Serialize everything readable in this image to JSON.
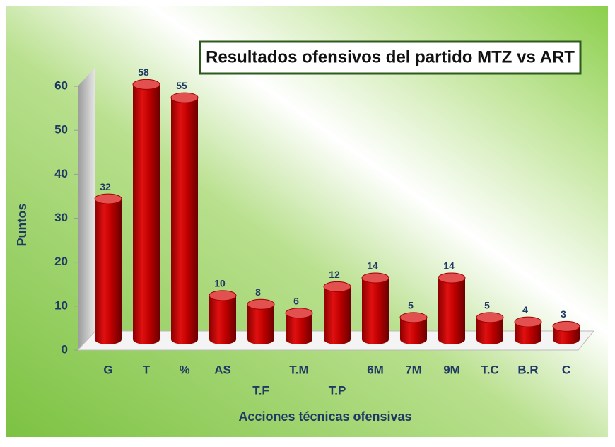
{
  "chart_data": {
    "type": "bar",
    "title": "Resultados ofensivos del partido MTZ vs ART",
    "x_label": "Acciones técnicas ofensivas",
    "y_label": "Puntos",
    "categories": [
      "G",
      "T",
      "%",
      "AS",
      "T.F",
      "T.M",
      "T.P",
      "6M",
      "7M",
      "9M",
      "T.C",
      "B.R",
      "C"
    ],
    "values": [
      32,
      58,
      55,
      10,
      8,
      6,
      12,
      14,
      5,
      14,
      5,
      4,
      3
    ],
    "color": "#c00000",
    "ylim": [
      0,
      60
    ],
    "yticks": [
      0,
      10,
      20,
      30,
      40,
      50,
      60
    ]
  }
}
